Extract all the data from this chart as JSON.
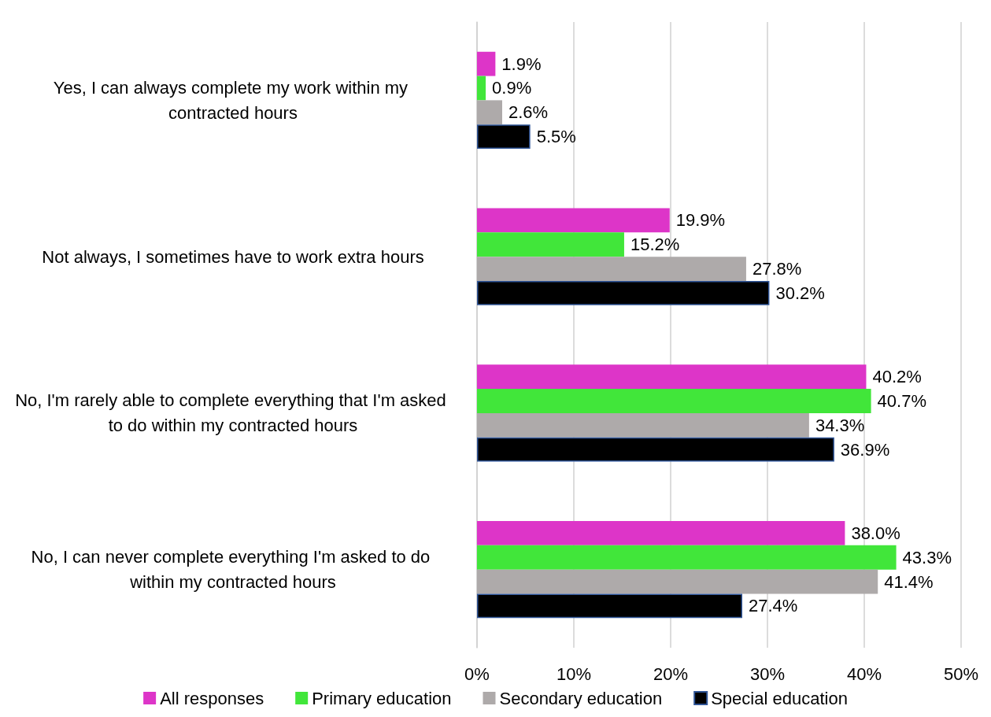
{
  "chart_data": {
    "type": "bar",
    "orientation": "horizontal",
    "categories": [
      "Yes, I can always complete my work within my contracted hours",
      "Not always, I sometimes have to work extra hours",
      "No, I'm rarely able to complete everything that I'm asked to do within my contracted hours",
      "No, I can never complete everything I'm asked to do within my contracted hours"
    ],
    "series": [
      {
        "name": "All responses",
        "color": "#dd35c8",
        "values": [
          1.9,
          19.9,
          40.2,
          38.0
        ],
        "value_labels": [
          "1.9%",
          "19.9%",
          "40.2%",
          "38.0%"
        ]
      },
      {
        "name": "Primary education",
        "color": "#41e63a",
        "values": [
          0.9,
          15.2,
          40.7,
          43.3
        ],
        "value_labels": [
          "0.9%",
          "15.2%",
          "40.7%",
          "43.3%"
        ]
      },
      {
        "name": "Secondary education",
        "color": "#aeaaaa",
        "values": [
          2.6,
          27.8,
          34.3,
          41.4
        ],
        "value_labels": [
          "2.6%",
          "27.8%",
          "34.3%",
          "41.4%"
        ]
      },
      {
        "name": "Special education",
        "color": "#000000",
        "values": [
          5.5,
          30.2,
          36.9,
          27.4
        ],
        "value_labels": [
          "5.5%",
          "30.2%",
          "36.9%",
          "27.4%"
        ]
      }
    ],
    "xlim": [
      0,
      50
    ],
    "xticks": [
      {
        "value": 0,
        "label": "0%"
      },
      {
        "value": 10,
        "label": "10%"
      },
      {
        "value": 20,
        "label": "20%"
      },
      {
        "value": 30,
        "label": "30%"
      },
      {
        "value": 40,
        "label": "40%"
      },
      {
        "value": 50,
        "label": "50%"
      }
    ],
    "grid": "x",
    "legend": "bottom"
  }
}
